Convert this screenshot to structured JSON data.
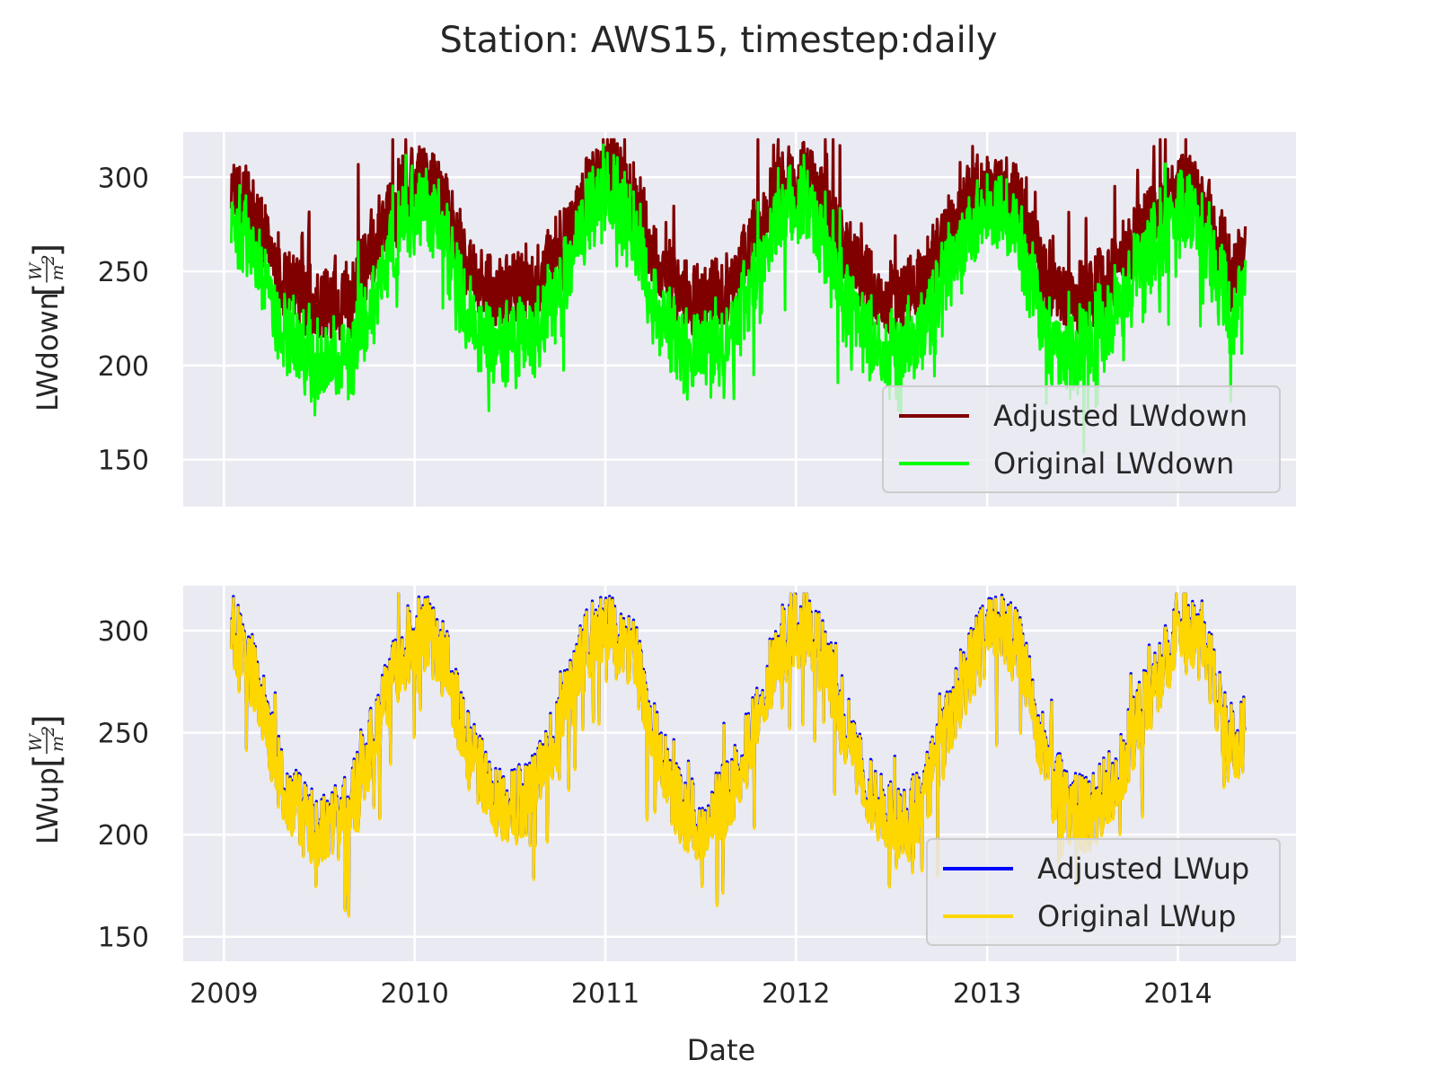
{
  "figure": {
    "title": "Station: AWS15, timestep:daily",
    "xlabel": "Date",
    "background": "#ffffff",
    "axes_facecolor": "#eaeaf2",
    "grid_color": "#ffffff"
  },
  "chart_data": [
    {
      "type": "line",
      "ylabel": "LWdown",
      "unit_numerator": "W",
      "unit_denominator": "m",
      "unit_power": "2",
      "x_ticks": [
        "2009",
        "2010",
        "2011",
        "2012",
        "2013",
        "2014"
      ],
      "y_ticks": [
        150,
        200,
        250,
        300
      ],
      "xlim": [
        "2008-10-15",
        "2014-08-15"
      ],
      "ylim": [
        125,
        324
      ],
      "grid": true,
      "legend_position": "lower-right",
      "date_start": "2009-01-15",
      "date_end": "2014-05-10",
      "series": [
        {
          "name": "Adjusted LWdown",
          "color": "#800000",
          "x": [
            "2009-01-15",
            "2009-03-01",
            "2009-04-15",
            "2009-06-01",
            "2009-07-15",
            "2009-09-01",
            "2009-10-15",
            "2009-12-01",
            "2010-01-15",
            "2010-03-01",
            "2010-04-15",
            "2010-06-01",
            "2010-07-15",
            "2010-09-01",
            "2010-10-15",
            "2010-12-01",
            "2011-01-15",
            "2011-03-01",
            "2011-04-15",
            "2011-06-01",
            "2011-07-15",
            "2011-09-01",
            "2011-10-15",
            "2011-12-01",
            "2012-01-15",
            "2012-03-01",
            "2012-04-15",
            "2012-06-01",
            "2012-07-15",
            "2012-09-01",
            "2012-10-15",
            "2012-12-01",
            "2013-01-15",
            "2013-03-01",
            "2013-04-15",
            "2013-06-01",
            "2013-07-15",
            "2013-09-01",
            "2013-10-15",
            "2013-12-01",
            "2014-01-15",
            "2014-03-01",
            "2014-04-15",
            "2014-05-10"
          ],
          "y": [
            296,
            282,
            248,
            236,
            232,
            234,
            262,
            290,
            300,
            285,
            252,
            238,
            240,
            246,
            268,
            294,
            305,
            286,
            254,
            238,
            234,
            244,
            272,
            294,
            300,
            282,
            256,
            238,
            236,
            244,
            270,
            290,
            298,
            286,
            252,
            236,
            238,
            250,
            270,
            282,
            296,
            282,
            248,
            262
          ]
        },
        {
          "name": "Original LWdown",
          "color": "#00ff00",
          "x": [
            "2009-01-15",
            "2009-03-01",
            "2009-04-15",
            "2009-06-01",
            "2009-07-15",
            "2009-09-01",
            "2009-10-15",
            "2009-12-01",
            "2010-01-15",
            "2010-03-01",
            "2010-04-15",
            "2010-06-01",
            "2010-07-15",
            "2010-09-01",
            "2010-10-15",
            "2010-12-01",
            "2011-01-15",
            "2011-03-01",
            "2011-04-15",
            "2011-06-01",
            "2011-07-15",
            "2011-09-01",
            "2011-10-15",
            "2011-12-01",
            "2012-01-15",
            "2012-03-01",
            "2012-04-15",
            "2012-06-01",
            "2012-07-15",
            "2012-09-01",
            "2012-10-15",
            "2012-12-01",
            "2013-01-15",
            "2013-03-01",
            "2013-04-15",
            "2013-06-01",
            "2013-07-15",
            "2013-09-01",
            "2013-10-15",
            "2013-12-01",
            "2014-01-15",
            "2014-03-01",
            "2014-04-15",
            "2014-05-10"
          ],
          "y": [
            282,
            262,
            222,
            208,
            202,
            206,
            236,
            274,
            286,
            268,
            228,
            212,
            214,
            222,
            248,
            282,
            292,
            268,
            228,
            210,
            206,
            218,
            250,
            282,
            288,
            262,
            232,
            210,
            208,
            220,
            252,
            274,
            286,
            268,
            226,
            208,
            212,
            228,
            252,
            268,
            284,
            266,
            224,
            250
          ]
        }
      ]
    },
    {
      "type": "line",
      "ylabel": "LWup",
      "unit_numerator": "W",
      "unit_denominator": "m",
      "unit_power": "2",
      "x_ticks": [
        "2009",
        "2010",
        "2011",
        "2012",
        "2013",
        "2014"
      ],
      "y_ticks": [
        150,
        200,
        250,
        300
      ],
      "xlim": [
        "2008-10-15",
        "2014-08-15"
      ],
      "ylim": [
        138,
        322
      ],
      "grid": true,
      "legend_position": "lower-right",
      "date_start": "2009-01-15",
      "date_end": "2014-05-10",
      "series": [
        {
          "name": "Adjusted LWup",
          "color": "#0000ff",
          "x": [
            "2009-01-15",
            "2009-03-01",
            "2009-04-15",
            "2009-06-01",
            "2009-07-15",
            "2009-09-01",
            "2009-10-15",
            "2009-12-01",
            "2010-01-15",
            "2010-03-01",
            "2010-04-15",
            "2010-06-01",
            "2010-07-15",
            "2010-09-01",
            "2010-10-15",
            "2010-12-01",
            "2011-01-15",
            "2011-03-01",
            "2011-04-15",
            "2011-06-01",
            "2011-07-15",
            "2011-09-01",
            "2011-10-15",
            "2011-12-01",
            "2012-01-15",
            "2012-03-01",
            "2012-04-15",
            "2012-06-01",
            "2012-07-15",
            "2012-09-01",
            "2012-10-15",
            "2012-12-01",
            "2013-01-15",
            "2013-03-01",
            "2013-04-15",
            "2013-06-01",
            "2013-07-15",
            "2013-09-01",
            "2013-10-15",
            "2013-12-01",
            "2014-01-15",
            "2014-03-01",
            "2014-04-15",
            "2014-05-10"
          ],
          "y": [
            300,
            278,
            232,
            208,
            200,
            214,
            248,
            284,
            302,
            284,
            240,
            218,
            214,
            228,
            262,
            296,
            304,
            284,
            236,
            210,
            206,
            222,
            256,
            294,
            302,
            284,
            244,
            214,
            204,
            216,
            252,
            284,
            304,
            292,
            244,
            214,
            210,
            226,
            256,
            282,
            302,
            286,
            236,
            254
          ]
        },
        {
          "name": "Original LWup",
          "color": "#ffd700",
          "x": [
            "2009-01-15",
            "2009-03-01",
            "2009-04-15",
            "2009-06-01",
            "2009-07-15",
            "2009-09-01",
            "2009-10-15",
            "2009-12-01",
            "2010-01-15",
            "2010-03-01",
            "2010-04-15",
            "2010-06-01",
            "2010-07-15",
            "2010-09-01",
            "2010-10-15",
            "2010-12-01",
            "2011-01-15",
            "2011-03-01",
            "2011-04-15",
            "2011-06-01",
            "2011-07-15",
            "2011-09-01",
            "2011-10-15",
            "2011-12-01",
            "2012-01-15",
            "2012-03-01",
            "2012-04-15",
            "2012-06-01",
            "2012-07-15",
            "2012-09-01",
            "2012-10-15",
            "2012-12-01",
            "2013-01-15",
            "2013-03-01",
            "2013-04-15",
            "2013-06-01",
            "2013-07-15",
            "2013-09-01",
            "2013-10-15",
            "2013-12-01",
            "2014-01-15",
            "2014-03-01",
            "2014-04-15",
            "2014-05-10"
          ],
          "y": [
            299,
            277,
            231,
            207,
            199,
            213,
            247,
            283,
            301,
            283,
            239,
            217,
            213,
            227,
            261,
            295,
            303,
            283,
            235,
            209,
            205,
            221,
            255,
            293,
            301,
            283,
            243,
            213,
            203,
            215,
            251,
            283,
            303,
            291,
            243,
            213,
            209,
            225,
            255,
            281,
            301,
            285,
            235,
            253
          ]
        }
      ]
    }
  ]
}
